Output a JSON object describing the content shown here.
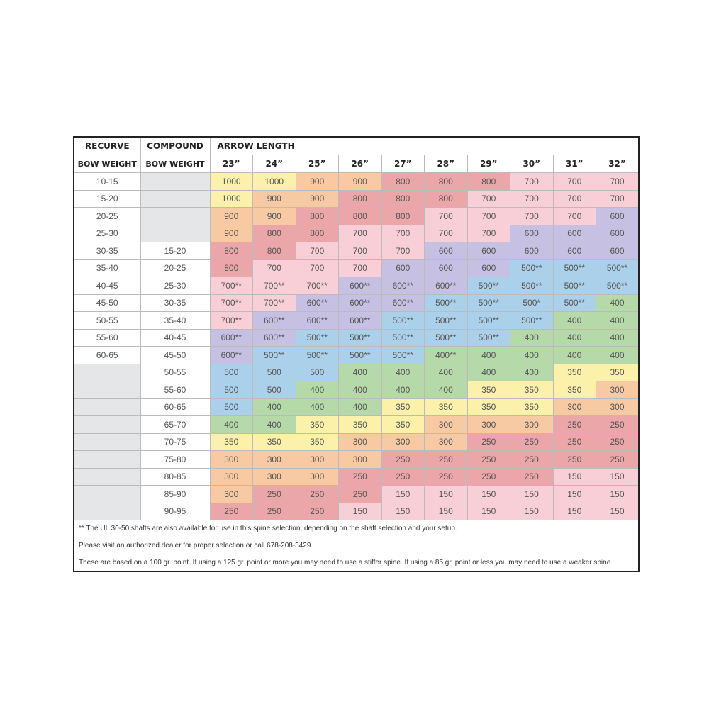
{
  "header": {
    "recurve": "RECURVE",
    "compound": "COMPOUND",
    "arrow_length": "ARROW LENGTH",
    "recurve_sub": "BOW WEIGHT",
    "compound_sub": "BOW WEIGHT",
    "lengths": [
      "23”",
      "24”",
      "25”",
      "26”",
      "27”",
      "28”",
      "29”",
      "30”",
      "31”",
      "32”"
    ]
  },
  "palette": {
    "y": "#fbf1ab",
    "o": "#f8caa3",
    "r": "#eaa6a9",
    "p": "#f8cfd7",
    "l": "#c6c0e3",
    "b": "#abd0ea",
    "g": "#b5d9a9",
    "empty": "#e5e6e8"
  },
  "rows": [
    {
      "recurve": "10-15",
      "compound": null,
      "values": [
        "1000",
        "1000",
        "900",
        "900",
        "800",
        "800",
        "800",
        "700",
        "700",
        "700"
      ],
      "colors": "yyoorrrppp"
    },
    {
      "recurve": "15-20",
      "compound": null,
      "values": [
        "1000",
        "900",
        "900",
        "800",
        "800",
        "800",
        "700",
        "700",
        "700",
        "700"
      ],
      "colors": "yoorrrpppp"
    },
    {
      "recurve": "20-25",
      "compound": null,
      "values": [
        "900",
        "900",
        "800",
        "800",
        "800",
        "700",
        "700",
        "700",
        "700",
        "600"
      ],
      "colors": "oorrrppppl"
    },
    {
      "recurve": "25-30",
      "compound": null,
      "values": [
        "900",
        "800",
        "800",
        "700",
        "700",
        "700",
        "700",
        "600",
        "600",
        "600"
      ],
      "colors": "orrpppplll"
    },
    {
      "recurve": "30-35",
      "compound": "15-20",
      "values": [
        "800",
        "800",
        "700",
        "700",
        "700",
        "600",
        "600",
        "600",
        "600",
        "600"
      ],
      "colors": "rrppplllll"
    },
    {
      "recurve": "35-40",
      "compound": "20-25",
      "values": [
        "800",
        "700",
        "700",
        "700",
        "600",
        "600",
        "600",
        "500**",
        "500**",
        "500**"
      ],
      "colors": "rppplllbbb"
    },
    {
      "recurve": "40-45",
      "compound": "25-30",
      "values": [
        "700**",
        "700**",
        "700**",
        "600**",
        "600**",
        "600**",
        "500**",
        "500**",
        "500**",
        "500**"
      ],
      "colors": "ppplllbbbb"
    },
    {
      "recurve": "45-50",
      "compound": "30-35",
      "values": [
        "700**",
        "700**",
        "600**",
        "600**",
        "600**",
        "500**",
        "500**",
        "500*",
        "500**",
        "400"
      ],
      "colors": "pplllbbbbg"
    },
    {
      "recurve": "50-55",
      "compound": "35-40",
      "values": [
        "700**",
        "600**",
        "600**",
        "600**",
        "500**",
        "500**",
        "500**",
        "500**",
        "400",
        "400"
      ],
      "colors": "plllbbbbgg"
    },
    {
      "recurve": "55-60",
      "compound": "40-45",
      "values": [
        "600**",
        "600**",
        "500**",
        "500**",
        "500**",
        "500**",
        "500**",
        "400",
        "400",
        "400"
      ],
      "colors": "llbbbbbggg"
    },
    {
      "recurve": "60-65",
      "compound": "45-50",
      "values": [
        "600**",
        "500**",
        "500**",
        "500**",
        "500**",
        "400**",
        "400",
        "400",
        "400",
        "400"
      ],
      "colors": "lbbbbggggg"
    },
    {
      "recurve": null,
      "compound": "50-55",
      "values": [
        "500",
        "500",
        "500",
        "400",
        "400",
        "400",
        "400",
        "400",
        "350",
        "350"
      ],
      "colors": "bbbgggggyy"
    },
    {
      "recurve": null,
      "compound": "55-60",
      "values": [
        "500",
        "500",
        "400",
        "400",
        "400",
        "400",
        "350",
        "350",
        "350",
        "300"
      ],
      "colors": "bbggggyyyo"
    },
    {
      "recurve": null,
      "compound": "60-65",
      "values": [
        "500",
        "400",
        "400",
        "400",
        "350",
        "350",
        "350",
        "350",
        "300",
        "300"
      ],
      "colors": "bgggyyyyoo"
    },
    {
      "recurve": null,
      "compound": "65-70",
      "values": [
        "400",
        "400",
        "350",
        "350",
        "350",
        "300",
        "300",
        "300",
        "250",
        "250"
      ],
      "colors": "ggyyyooorr"
    },
    {
      "recurve": null,
      "compound": "70-75",
      "values": [
        "350",
        "350",
        "350",
        "300",
        "300",
        "300",
        "250",
        "250",
        "250",
        "250"
      ],
      "colors": "yyyooorrrr"
    },
    {
      "recurve": null,
      "compound": "75-80",
      "values": [
        "300",
        "300",
        "300",
        "300",
        "250",
        "250",
        "250",
        "250",
        "250",
        "250"
      ],
      "colors": "oooorrrrrr"
    },
    {
      "recurve": null,
      "compound": "80-85",
      "values": [
        "300",
        "300",
        "300",
        "250",
        "250",
        "250",
        "250",
        "250",
        "150",
        "150"
      ],
      "colors": "ooorrrrrpp"
    },
    {
      "recurve": null,
      "compound": "85-90",
      "values": [
        "300",
        "250",
        "250",
        "250",
        "150",
        "150",
        "150",
        "150",
        "150",
        "150"
      ],
      "colors": "orrrpppppp"
    },
    {
      "recurve": null,
      "compound": "90-95",
      "values": [
        "250",
        "250",
        "250",
        "150",
        "150",
        "150",
        "150",
        "150",
        "150",
        "150"
      ],
      "colors": "rrrppppppp"
    }
  ],
  "notes": [
    "** The UL 30-50 shafts are also available for use in this spine selection, depending on the shaft selection and your setup.",
    "Please visit an authorized dealer for proper selection or call 678-208-3429",
    "These are based on a 100 gr. point. If using a 125 gr. point or more you may need to use a stiffer spine. If using a 85 gr. point or less you may need to use a weaker spine."
  ]
}
